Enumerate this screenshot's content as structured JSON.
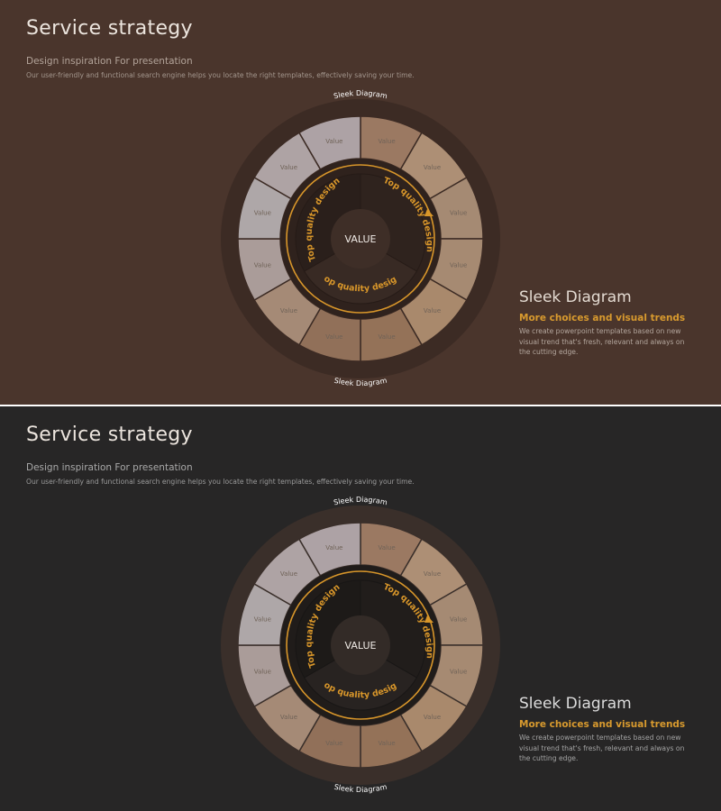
{
  "slides": [
    {
      "theme": "brown",
      "title": "Service strategy",
      "subtitle": "Design inspiration For presentation",
      "description": "Our user-friendly and functional search engine helps you locate the right templates, effectively saving your time.",
      "diagram": {
        "ring_label_top": "Sleek Diagram",
        "ring_label_bottom": "Sleek Diagram",
        "center_label": "VALUE",
        "arc_labels": [
          "Top quality design",
          "Top quality design",
          "Top quality design"
        ],
        "segment_labels": [
          "Value",
          "Value",
          "Value",
          "Value",
          "Value",
          "Value",
          "Value",
          "Value",
          "Value",
          "Value",
          "Value",
          "Value"
        ]
      },
      "side": {
        "heading": "Sleek Diagram",
        "subheading": "More choices and visual trends",
        "body": "We create powerpoint templates based on new visual trend that's fresh, relevant and always on the cutting edge."
      },
      "colors": {
        "background": "#4a352c",
        "outer_ring": "#3c2b24",
        "inner_disc": "#2f221d",
        "center": "#3e2e27",
        "accent": "#d8962a"
      }
    },
    {
      "theme": "dark",
      "title": "Service strategy",
      "subtitle": "Design inspiration For presentation",
      "description": "Our user-friendly and functional search engine helps you locate the right templates, effectively saving your time.",
      "diagram": {
        "ring_label_top": "Sleek Diagram",
        "ring_label_bottom": "Sleek Diagram",
        "center_label": "VALUE",
        "arc_labels": [
          "Top quality design",
          "Top quality design",
          "Top quality design"
        ],
        "segment_labels": [
          "Value",
          "Value",
          "Value",
          "Value",
          "Value",
          "Value",
          "Value",
          "Value",
          "Value",
          "Value",
          "Value",
          "Value"
        ]
      },
      "side": {
        "heading": "Sleek Diagram",
        "subheading": "More choices and visual trends",
        "body": "We create powerpoint templates based on new visual trend that's fresh, relevant and always on the cutting edge."
      },
      "colors": {
        "background": "#272626",
        "outer_ring": "#3a2f2a",
        "inner_disc": "#201c1a",
        "center": "#332b27",
        "accent": "#d8962a"
      }
    }
  ]
}
